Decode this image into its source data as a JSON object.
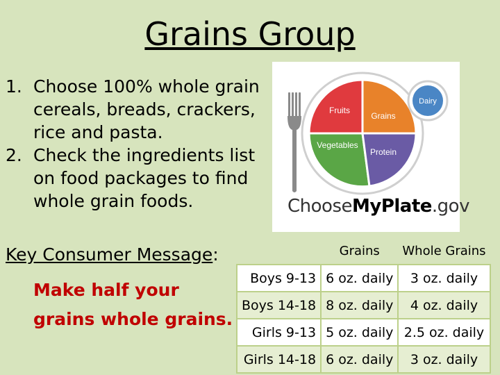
{
  "title": "Grains Group",
  "list": [
    {
      "num": "1.",
      "text": "Choose 100% whole grain cereals, breads, crackers, rice and pasta."
    },
    {
      "num": "2.",
      "text": "Check the ingredients list on food packages to find whole grain foods."
    }
  ],
  "key_message": {
    "label": "Key Consumer Message",
    "suffix": ":",
    "message": "Make half your grains whole grains."
  },
  "plate": {
    "fruits": "Fruits",
    "grains": "Grains",
    "vegetables": "Vegetables",
    "protein": "Protein",
    "dairy": "Dairy",
    "brand_prefix": "Choose",
    "brand_bold": "MyPlate",
    "brand_suffix": ".gov",
    "colors": {
      "fruits": "#e03a3e",
      "grains": "#e8822a",
      "vegetables": "#5aa646",
      "protein": "#6a5ba5",
      "dairy": "#4a86c5"
    }
  },
  "table": {
    "headers": [
      "",
      "Grains",
      "Whole Grains"
    ],
    "rows": [
      {
        "label": "Boys 9-13",
        "grains": "6 oz. daily",
        "whole": "3 oz. daily"
      },
      {
        "label": "Boys 14-18",
        "grains": "8 oz. daily",
        "whole": "4 oz. daily"
      },
      {
        "label": "Girls 9-13",
        "grains": "5 oz. daily",
        "whole": "2.5 oz. daily"
      },
      {
        "label": "Girls 14-18",
        "grains": "6 oz. daily",
        "whole": "3 oz. daily"
      }
    ]
  }
}
